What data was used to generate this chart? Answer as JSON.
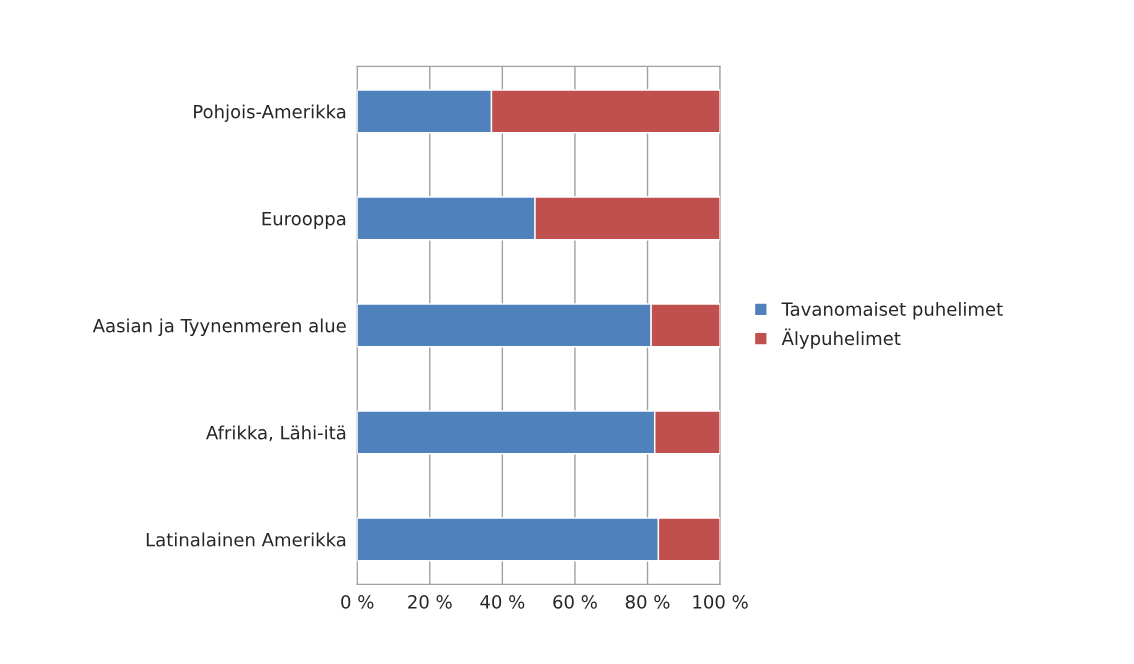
{
  "chart_data": {
    "type": "bar",
    "orientation": "horizontal",
    "stacked": true,
    "categories": [
      "Pohjois-Amerikka",
      "Eurooppa",
      "Aasian ja Tyynenmeren alue",
      "Afrikka, Lähi-itä",
      "Latinalainen Amerikka"
    ],
    "series": [
      {
        "name": "Tavanomaiset puhelimet",
        "color": "#4f81bd",
        "values": [
          37,
          49,
          81,
          82,
          83
        ]
      },
      {
        "name": "Älypuhelimet",
        "color": "#c0504d",
        "values": [
          63,
          51,
          19,
          18,
          17
        ]
      }
    ],
    "xlim": [
      0,
      100
    ],
    "xticks": [
      {
        "value": 0,
        "label": "0 %"
      },
      {
        "value": 20,
        "label": "20 %"
      },
      {
        "value": 40,
        "label": "40 %"
      },
      {
        "value": 60,
        "label": "60 %"
      },
      {
        "value": 80,
        "label": "80 %"
      },
      {
        "value": 100,
        "label": "100 %"
      }
    ],
    "grid": "x",
    "legend": "right"
  }
}
